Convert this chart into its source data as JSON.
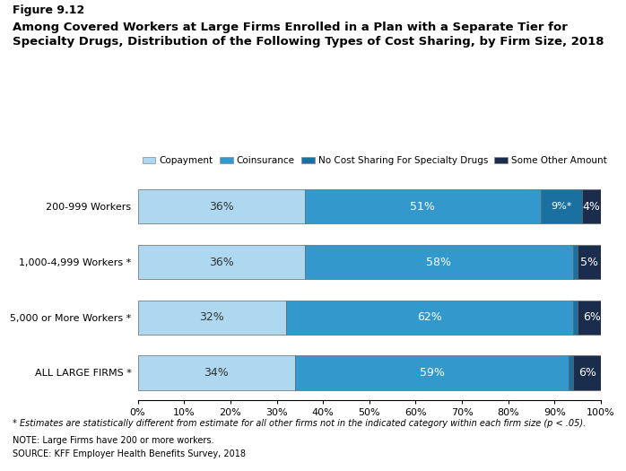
{
  "categories": [
    "ALL LARGE FIRMS *",
    "5,000 or More Workers *",
    "1,000-4,999 Workers *",
    "200-999 Workers"
  ],
  "ytick_labels": [
    "ALL LARGE FIRMS *",
    "5,000 or More Workers *",
    "1,000-4,999 Workers *",
    "200-999 Workers"
  ],
  "copayment": [
    34,
    32,
    36,
    36
  ],
  "coinsurance": [
    59,
    62,
    58,
    51
  ],
  "no_cost_sharing": [
    1,
    1,
    1,
    9
  ],
  "some_other": [
    6,
    6,
    5,
    4
  ],
  "color_copayment": "#add8f0",
  "color_coinsurance": "#3399cc",
  "color_no_cost_sharing": "#1a70a0",
  "color_some_other": "#1a2d4d",
  "title_fig": "Figure 9.12",
  "title_main": "Among Covered Workers at Large Firms Enrolled in a Plan with a Separate Tier for\nSpecialty Drugs, Distribution of the Following Types of Cost Sharing, by Firm Size, 2018",
  "legend_labels": [
    "Copayment",
    "Coinsurance",
    "No Cost Sharing For Specialty Drugs",
    "Some Other Amount"
  ],
  "note1": "* Estimates are statistically different from estimate for all other firms not in the indicated category within each firm size (p < .05).",
  "note2": "NOTE: Large Firms have 200 or more workers.",
  "note3": "SOURCE: KFF Employer Health Benefits Survey, 2018",
  "bar_labels_copayment": [
    "34%",
    "32%",
    "36%",
    "36%"
  ],
  "bar_labels_coinsurance": [
    "59%",
    "62%",
    "58%",
    "51%"
  ],
  "bar_labels_no_cost_sharing": [
    "",
    "",
    "",
    "9%*"
  ],
  "bar_labels_some_other": [
    "6%",
    "6%",
    "5%",
    "4%"
  ],
  "xlim": [
    0,
    100
  ]
}
